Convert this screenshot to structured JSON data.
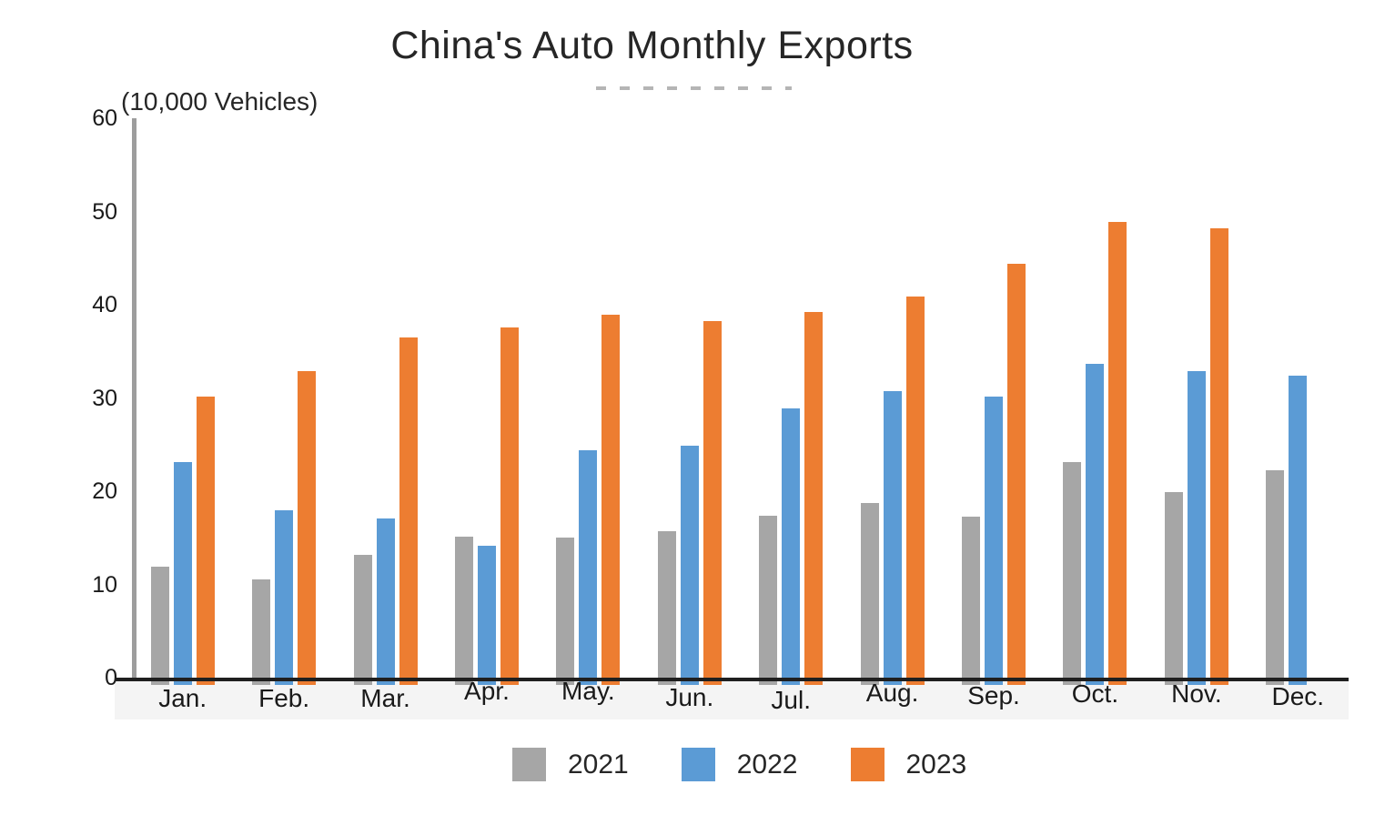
{
  "chart_data": {
    "type": "bar",
    "title": "China's Auto Monthly Exports",
    "ylabel": "(10,000 Vehicles)",
    "xlabel": "",
    "categories": [
      "Jan.",
      "Feb.",
      "Mar.",
      "Apr.",
      "May.",
      "Jun.",
      "Jul.",
      "Aug.",
      "Sep.",
      "Oct.",
      "Nov.",
      "Dec."
    ],
    "series": [
      {
        "name": "2021",
        "color": "#a6a6a6",
        "values": [
          11.9,
          10.5,
          13.2,
          15.1,
          15.0,
          15.7,
          17.4,
          18.7,
          17.3,
          23.1,
          19.9,
          22.2
        ]
      },
      {
        "name": "2022",
        "color": "#5b9bd5",
        "values": [
          23.1,
          18.0,
          17.1,
          14.1,
          24.4,
          24.9,
          28.9,
          30.7,
          30.1,
          33.7,
          32.9,
          32.4
        ]
      },
      {
        "name": "2023",
        "color": "#ed7d31",
        "values": [
          30.1,
          32.9,
          36.5,
          37.6,
          38.9,
          38.2,
          39.2,
          40.9,
          44.4,
          48.9,
          48.2,
          null
        ]
      }
    ],
    "ylim": [
      0,
      60
    ],
    "yticks": [
      0,
      10,
      20,
      30,
      40,
      50,
      60
    ],
    "grid": false,
    "legend_position": "bottom"
  }
}
